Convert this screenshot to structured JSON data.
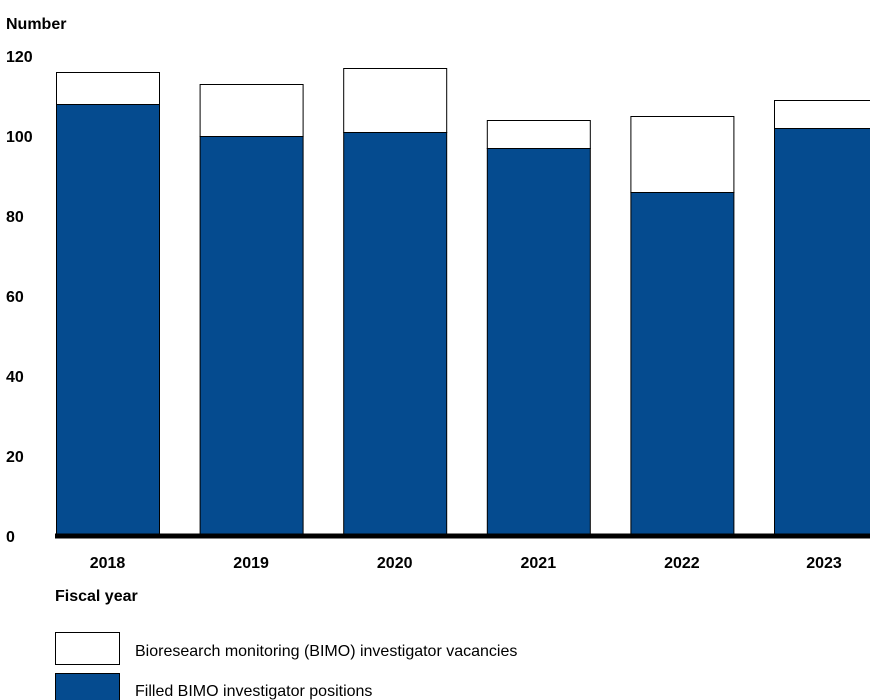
{
  "chart_data": {
    "type": "bar",
    "stacked": true,
    "ylabel": "Number",
    "xlabel": "Fiscal year",
    "ylim": [
      0,
      120
    ],
    "yticks": [
      0,
      20,
      40,
      60,
      80,
      100,
      120
    ],
    "grid": false,
    "legend_position": "bottom-left",
    "categories": [
      "2018",
      "2019",
      "2020",
      "2021",
      "2022",
      "2023"
    ],
    "series": [
      {
        "name": "Filled BIMO investigator positions",
        "color": "#054b8f",
        "values": [
          108,
          100,
          101,
          97,
          86,
          102
        ]
      },
      {
        "name": "Bioresearch monitoring (BIMO) investigator vacancies",
        "color": "#ffffff",
        "values": [
          8,
          13,
          16,
          7,
          19,
          7
        ]
      }
    ]
  }
}
